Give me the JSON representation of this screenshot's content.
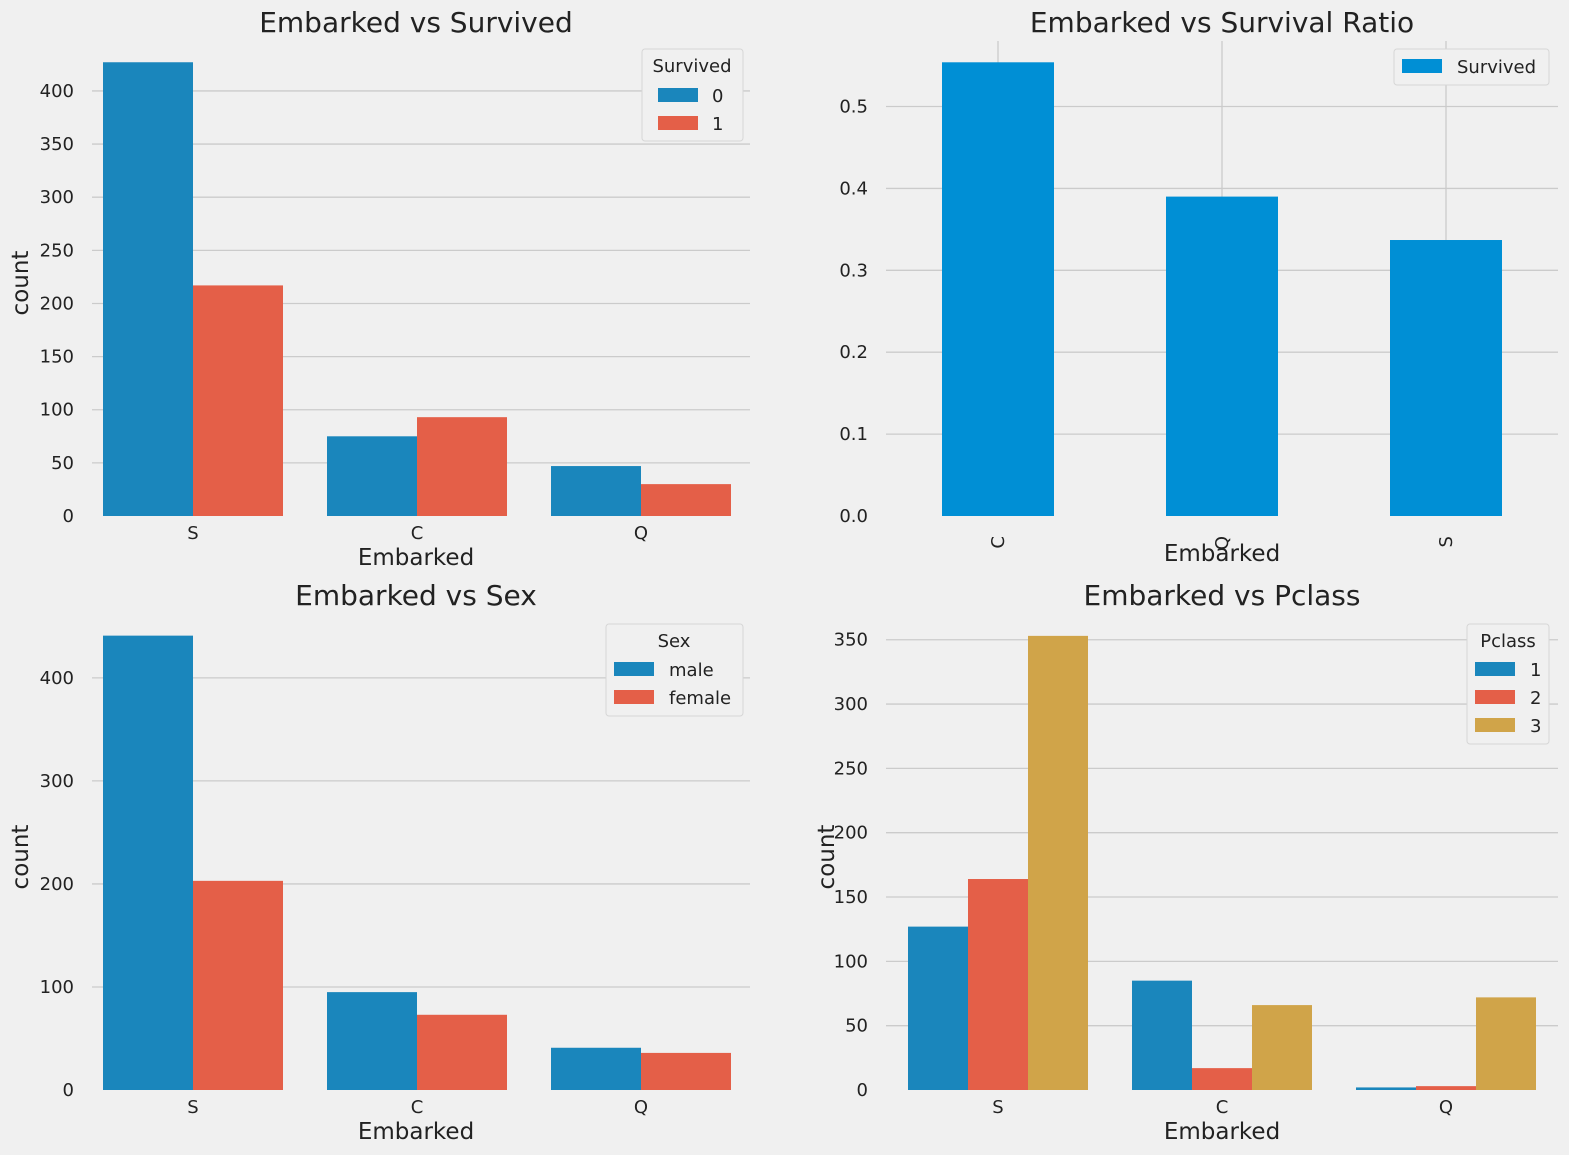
{
  "colors": {
    "background": "#f0f0f0",
    "grid": "#cbcbcb",
    "series_blue": "#1a86bc",
    "series_red": "#e45f48",
    "series_gold": "#d0a449",
    "ratio_blue": "#008fd5"
  },
  "chart_data": [
    {
      "type": "bar",
      "title": "Embarked vs Survived",
      "xlabel": "Embarked",
      "ylabel": "count",
      "categories": [
        "S",
        "C",
        "Q"
      ],
      "series": [
        {
          "name": "0",
          "values": [
            427,
            75,
            47
          ]
        },
        {
          "name": "1",
          "values": [
            217,
            93,
            30
          ]
        }
      ],
      "ylim": [
        0,
        447
      ],
      "yticks": [
        0,
        50,
        100,
        150,
        200,
        250,
        300,
        350,
        400
      ],
      "legend_title": "Survived",
      "legend_position": "top-right",
      "grid": true
    },
    {
      "type": "bar",
      "title": "Embarked vs Survival Ratio",
      "xlabel": "Embarked",
      "ylabel": "",
      "categories": [
        "C",
        "Q",
        "S"
      ],
      "series": [
        {
          "name": "Survived",
          "values": [
            0.554,
            0.39,
            0.337
          ]
        }
      ],
      "ylim": [
        0,
        0.58
      ],
      "yticks": [
        0.0,
        0.1,
        0.2,
        0.3,
        0.4,
        0.5
      ],
      "ytick_format": "1dp",
      "xtick_rotation": "vertical",
      "legend_position": "top-right",
      "grid": true
    },
    {
      "type": "bar",
      "title": "Embarked vs Sex",
      "xlabel": "Embarked",
      "ylabel": "count",
      "categories": [
        "S",
        "C",
        "Q"
      ],
      "series": [
        {
          "name": "male",
          "values": [
            441,
            95,
            41
          ]
        },
        {
          "name": "female",
          "values": [
            203,
            73,
            36
          ]
        }
      ],
      "ylim": [
        0,
        462
      ],
      "yticks": [
        0,
        100,
        200,
        300,
        400
      ],
      "legend_title": "Sex",
      "legend_position": "top-right",
      "grid": true
    },
    {
      "type": "bar",
      "title": "Embarked vs Pclass",
      "xlabel": "Embarked",
      "ylabel": "count",
      "categories": [
        "S",
        "C",
        "Q"
      ],
      "series": [
        {
          "name": "1",
          "values": [
            127,
            85,
            2
          ]
        },
        {
          "name": "2",
          "values": [
            164,
            17,
            3
          ]
        },
        {
          "name": "3",
          "values": [
            353,
            66,
            72
          ]
        }
      ],
      "ylim": [
        0,
        370
      ],
      "yticks": [
        0,
        50,
        100,
        150,
        200,
        250,
        300,
        350
      ],
      "legend_title": "Pclass",
      "legend_position": "top-right",
      "grid": true
    }
  ]
}
